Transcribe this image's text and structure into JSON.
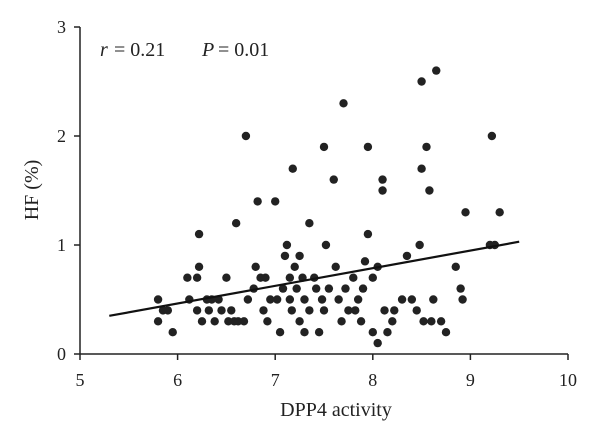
{
  "chart_data": {
    "type": "scatter",
    "title": "",
    "xlabel": "DPP4 activity",
    "ylabel": "HF (%)",
    "xlim": [
      5,
      10
    ],
    "ylim": [
      0,
      3
    ],
    "xticks": [
      "5",
      "6",
      "7",
      "8",
      "9",
      "10"
    ],
    "yticks": [
      "0",
      "1",
      "2",
      "3"
    ],
    "grid": false,
    "annotation": {
      "r_symbol": "r",
      "r_value": "= 0.21",
      "p_symbol": "P",
      "p_value": "= 0.01"
    },
    "marker_color": "#222222",
    "points": [
      [
        5.8,
        0.5
      ],
      [
        5.8,
        0.3
      ],
      [
        5.85,
        0.4
      ],
      [
        5.9,
        0.4
      ],
      [
        5.95,
        0.2
      ],
      [
        6.1,
        0.7
      ],
      [
        6.12,
        0.5
      ],
      [
        6.2,
        0.7
      ],
      [
        6.2,
        0.4
      ],
      [
        6.22,
        0.8
      ],
      [
        6.22,
        1.1
      ],
      [
        6.25,
        0.3
      ],
      [
        6.3,
        0.5
      ],
      [
        6.32,
        0.4
      ],
      [
        6.35,
        0.5
      ],
      [
        6.38,
        0.3
      ],
      [
        6.42,
        0.5
      ],
      [
        6.45,
        0.4
      ],
      [
        6.5,
        0.7
      ],
      [
        6.52,
        0.3
      ],
      [
        6.55,
        0.4
      ],
      [
        6.58,
        0.3
      ],
      [
        6.6,
        1.2
      ],
      [
        6.62,
        0.3
      ],
      [
        6.68,
        0.3
      ],
      [
        6.7,
        2.0
      ],
      [
        6.72,
        0.5
      ],
      [
        6.78,
        0.6
      ],
      [
        6.8,
        0.8
      ],
      [
        6.82,
        1.4
      ],
      [
        6.85,
        0.7
      ],
      [
        6.88,
        0.4
      ],
      [
        6.9,
        0.7
      ],
      [
        6.92,
        0.3
      ],
      [
        6.95,
        0.5
      ],
      [
        7.0,
        1.4
      ],
      [
        7.02,
        0.5
      ],
      [
        7.05,
        0.2
      ],
      [
        7.08,
        0.6
      ],
      [
        7.1,
        0.9
      ],
      [
        7.12,
        1.0
      ],
      [
        7.15,
        0.7
      ],
      [
        7.15,
        0.5
      ],
      [
        7.17,
        0.4
      ],
      [
        7.18,
        1.7
      ],
      [
        7.2,
        0.8
      ],
      [
        7.22,
        0.6
      ],
      [
        7.25,
        0.9
      ],
      [
        7.25,
        0.3
      ],
      [
        7.28,
        0.7
      ],
      [
        7.3,
        0.5
      ],
      [
        7.3,
        0.2
      ],
      [
        7.35,
        1.2
      ],
      [
        7.35,
        0.4
      ],
      [
        7.4,
        0.7
      ],
      [
        7.42,
        0.6
      ],
      [
        7.45,
        0.2
      ],
      [
        7.48,
        0.5
      ],
      [
        7.5,
        0.4
      ],
      [
        7.5,
        1.9
      ],
      [
        7.52,
        1.0
      ],
      [
        7.55,
        0.6
      ],
      [
        7.6,
        1.6
      ],
      [
        7.62,
        0.8
      ],
      [
        7.65,
        0.5
      ],
      [
        7.68,
        0.3
      ],
      [
        7.7,
        2.3
      ],
      [
        7.72,
        0.6
      ],
      [
        7.75,
        0.4
      ],
      [
        7.8,
        0.7
      ],
      [
        7.82,
        0.4
      ],
      [
        7.85,
        0.5
      ],
      [
        7.88,
        0.3
      ],
      [
        7.9,
        0.6
      ],
      [
        7.92,
        0.85
      ],
      [
        7.95,
        1.9
      ],
      [
        7.95,
        1.1
      ],
      [
        8.0,
        0.2
      ],
      [
        8.0,
        0.7
      ],
      [
        8.05,
        0.1
      ],
      [
        8.05,
        0.8
      ],
      [
        8.1,
        1.6
      ],
      [
        8.1,
        1.5
      ],
      [
        8.12,
        0.4
      ],
      [
        8.15,
        0.2
      ],
      [
        8.2,
        0.3
      ],
      [
        8.22,
        0.4
      ],
      [
        8.3,
        0.5
      ],
      [
        8.35,
        0.9
      ],
      [
        8.4,
        0.5
      ],
      [
        8.45,
        0.4
      ],
      [
        8.48,
        1.0
      ],
      [
        8.5,
        1.7
      ],
      [
        8.5,
        2.5
      ],
      [
        8.52,
        0.3
      ],
      [
        8.55,
        1.9
      ],
      [
        8.58,
        1.5
      ],
      [
        8.6,
        0.3
      ],
      [
        8.62,
        0.5
      ],
      [
        8.65,
        2.6
      ],
      [
        8.7,
        0.3
      ],
      [
        8.75,
        0.2
      ],
      [
        8.85,
        0.8
      ],
      [
        8.9,
        0.6
      ],
      [
        8.92,
        0.5
      ],
      [
        8.95,
        1.3
      ],
      [
        9.2,
        1.0
      ],
      [
        9.22,
        2.0
      ],
      [
        9.25,
        1.0
      ],
      [
        9.3,
        1.3
      ]
    ],
    "regression_line": {
      "x": [
        5.3,
        9.5
      ],
      "y": [
        0.35,
        1.03
      ]
    }
  }
}
